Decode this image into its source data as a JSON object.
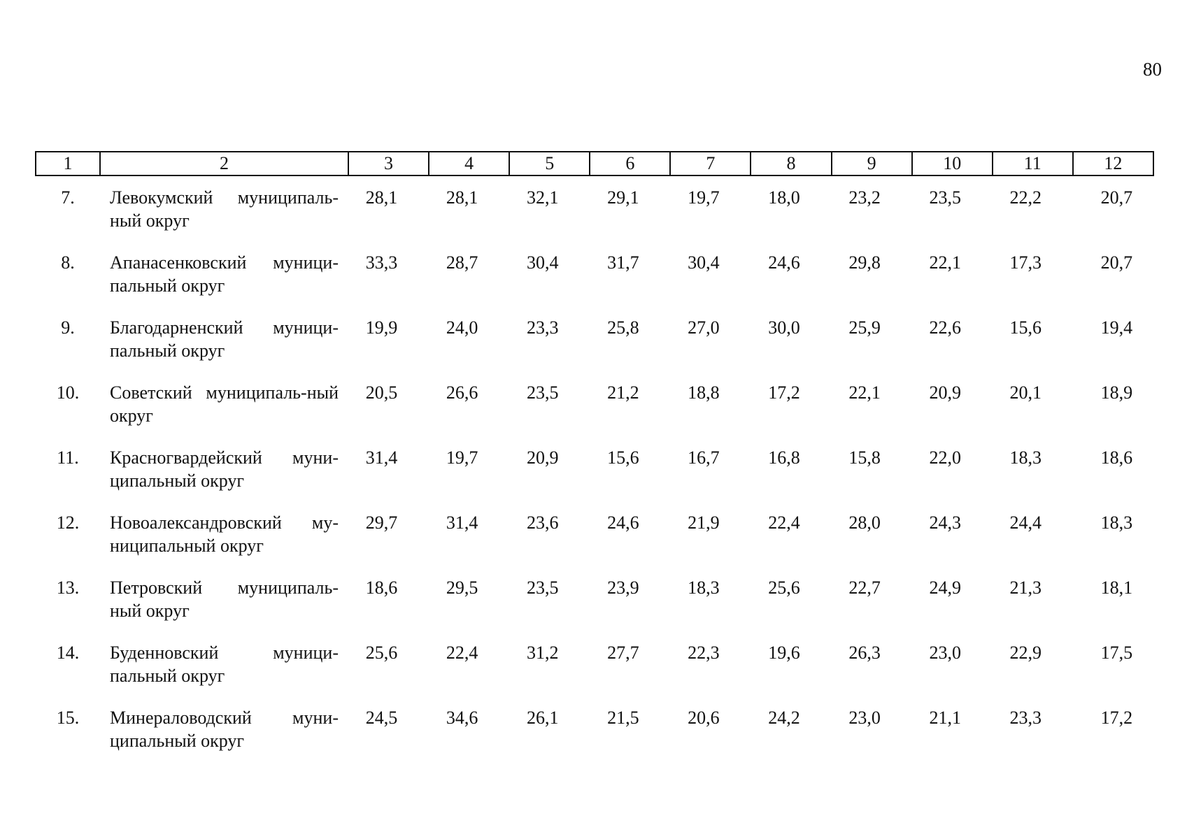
{
  "page_number": "80",
  "table": {
    "header": [
      "1",
      "2",
      "3",
      "4",
      "5",
      "6",
      "7",
      "8",
      "9",
      "10",
      "11",
      "12"
    ],
    "rows": [
      {
        "num": "7.",
        "name": "Левокумский муниципаль-ный округ",
        "values": [
          "28,1",
          "28,1",
          "32,1",
          "29,1",
          "19,7",
          "18,0",
          "23,2",
          "23,5",
          "22,2",
          "20,7"
        ]
      },
      {
        "num": "8.",
        "name": "Апанасенковский муници-пальный округ",
        "values": [
          "33,3",
          "28,7",
          "30,4",
          "31,7",
          "30,4",
          "24,6",
          "29,8",
          "22,1",
          "17,3",
          "20,7"
        ]
      },
      {
        "num": "9.",
        "name": "Благодарненский муници-пальный округ",
        "values": [
          "19,9",
          "24,0",
          "23,3",
          "25,8",
          "27,0",
          "30,0",
          "25,9",
          "22,6",
          "15,6",
          "19,4"
        ]
      },
      {
        "num": "10.",
        "name": "Советский муниципаль-ный округ",
        "values": [
          "20,5",
          "26,6",
          "23,5",
          "21,2",
          "18,8",
          "17,2",
          "22,1",
          "20,9",
          "20,1",
          "18,9"
        ]
      },
      {
        "num": "11.",
        "name": "Красногвардейский муни-ципальный округ",
        "values": [
          "31,4",
          "19,7",
          "20,9",
          "15,6",
          "16,7",
          "16,8",
          "15,8",
          "22,0",
          "18,3",
          "18,6"
        ]
      },
      {
        "num": "12.",
        "name": "Новоалександровский му-ниципальный округ",
        "values": [
          "29,7",
          "31,4",
          "23,6",
          "24,6",
          "21,9",
          "22,4",
          "28,0",
          "24,3",
          "24,4",
          "18,3"
        ]
      },
      {
        "num": "13.",
        "name": "Петровский муниципаль-ный округ",
        "values": [
          "18,6",
          "29,5",
          "23,5",
          "23,9",
          "18,3",
          "25,6",
          "22,7",
          "24,9",
          "21,3",
          "18,1"
        ]
      },
      {
        "num": "14.",
        "name": "Буденновский муници-пальный округ",
        "values": [
          "25,6",
          "22,4",
          "31,2",
          "27,7",
          "22,3",
          "19,6",
          "26,3",
          "23,0",
          "22,9",
          "17,5"
        ]
      },
      {
        "num": "15.",
        "name": "Минераловодский муни-ципальный округ",
        "values": [
          "24,5",
          "34,6",
          "26,1",
          "21,5",
          "20,6",
          "24,2",
          "23,0",
          "21,1",
          "23,3",
          "17,2"
        ]
      }
    ]
  }
}
